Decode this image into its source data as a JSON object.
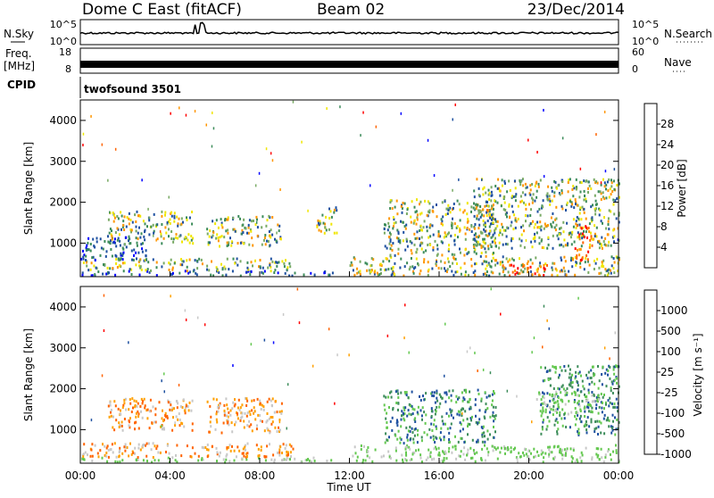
{
  "header": {
    "station": "Dome C East (fitACF)",
    "beam": "Beam 02",
    "date": "23/Dec/2014"
  },
  "nsky_panel": {
    "left_label": "N.Sky",
    "right_label": "N.Search",
    "left_ticks": [
      "10^5",
      "10^0"
    ],
    "right_ticks": [
      "10^5",
      "10^0"
    ]
  },
  "freq_panel": {
    "left_label_1": "Freq.",
    "left_label_2": "[MHz]",
    "right_label": "Nave",
    "left_ticks": [
      "18",
      "8"
    ],
    "right_ticks": [
      "60",
      "0"
    ]
  },
  "cpid": {
    "label": "CPID",
    "value": "twofsound 3501"
  },
  "colors": {
    "power_scale": [
      "#0000ff",
      "#1e50a0",
      "#3c8c5a",
      "#78aa64",
      "#f0e600",
      "#ff9600",
      "#ff6400",
      "#ff0000"
    ],
    "velocity_scale": [
      "#0000ff",
      "#1e50a0",
      "#3c8c5a",
      "#64c850",
      "#c8c8c8",
      "#ffa000",
      "#ff6400",
      "#ff0000"
    ]
  },
  "chart_data": [
    {
      "type": "heatmap",
      "name": "power",
      "ylabel": "Slant Range [km]",
      "yticks": [
        "1000",
        "2000",
        "3000",
        "4000"
      ],
      "ylim": [
        180,
        4500
      ],
      "xlim": [
        0,
        24
      ],
      "colorbar_label": "Power [dB]",
      "colorbar_ticks": [
        "4",
        "8",
        "12",
        "16",
        "20",
        "24",
        "28"
      ],
      "colorbar_range": [
        0,
        30
      ],
      "regions": [
        {
          "t0": 0.0,
          "t1": 11.3,
          "r0": 230,
          "r1": 350,
          "level": "low"
        },
        {
          "t0": 0.0,
          "t1": 9.5,
          "r0": 350,
          "r1": 650,
          "level": "mid"
        },
        {
          "t0": 0.0,
          "t1": 3.0,
          "r0": 600,
          "r1": 1200,
          "level": "low"
        },
        {
          "t0": 1.2,
          "t1": 5.0,
          "r0": 1000,
          "r1": 1800,
          "level": "mid"
        },
        {
          "t0": 5.6,
          "t1": 9.0,
          "r0": 950,
          "r1": 1700,
          "level": "mid"
        },
        {
          "t0": 10.5,
          "t1": 11.4,
          "r0": 1200,
          "r1": 1900,
          "level": "mid"
        },
        {
          "t0": 12.0,
          "t1": 24.0,
          "r0": 230,
          "r1": 700,
          "level": "mid"
        },
        {
          "t0": 13.5,
          "t1": 18.5,
          "r0": 700,
          "r1": 2100,
          "level": "mid"
        },
        {
          "t0": 17.5,
          "t1": 24.0,
          "r0": 900,
          "r1": 2600,
          "level": "mid"
        },
        {
          "t0": 18.8,
          "t1": 20.8,
          "r0": 230,
          "r1": 500,
          "level": "high"
        },
        {
          "t0": 22.0,
          "t1": 22.8,
          "r0": 600,
          "r1": 1500,
          "level": "high"
        }
      ]
    },
    {
      "type": "heatmap",
      "name": "velocity",
      "ylabel": "Slant Range [km]",
      "yticks": [
        "1000",
        "2000",
        "3000",
        "4000"
      ],
      "ylim": [
        180,
        4500
      ],
      "xlim": [
        0,
        24
      ],
      "xlabel": "Time UT",
      "xticks": [
        "00:00",
        "04:00",
        "08:00",
        "12:00",
        "16:00",
        "20:00",
        "00:00"
      ],
      "colorbar_label": "Velocity [m s⁻¹]",
      "colorbar_ticks": [
        "1000",
        "500",
        "100",
        "25",
        "-25",
        "-100",
        "-500",
        "-1000"
      ],
      "regions": [
        {
          "t0": 0.0,
          "t1": 11.3,
          "r0": 230,
          "r1": 350,
          "level": "near-zero"
        },
        {
          "t0": 0.0,
          "t1": 9.5,
          "r0": 350,
          "r1": 700,
          "level": "negative"
        },
        {
          "t0": 1.2,
          "t1": 5.0,
          "r0": 1000,
          "r1": 1800,
          "level": "negative"
        },
        {
          "t0": 5.6,
          "t1": 9.0,
          "r0": 950,
          "r1": 1800,
          "level": "negative"
        },
        {
          "t0": 12.0,
          "t1": 24.0,
          "r0": 230,
          "r1": 650,
          "level": "near-zero"
        },
        {
          "t0": 13.5,
          "t1": 18.5,
          "r0": 700,
          "r1": 2000,
          "level": "positive"
        },
        {
          "t0": 20.5,
          "t1": 24.0,
          "r0": 900,
          "r1": 2600,
          "level": "positive"
        },
        {
          "t0": 20.3,
          "t1": 23.2,
          "r0": 1400,
          "r1": 2000,
          "level": "near-zero"
        }
      ]
    }
  ]
}
